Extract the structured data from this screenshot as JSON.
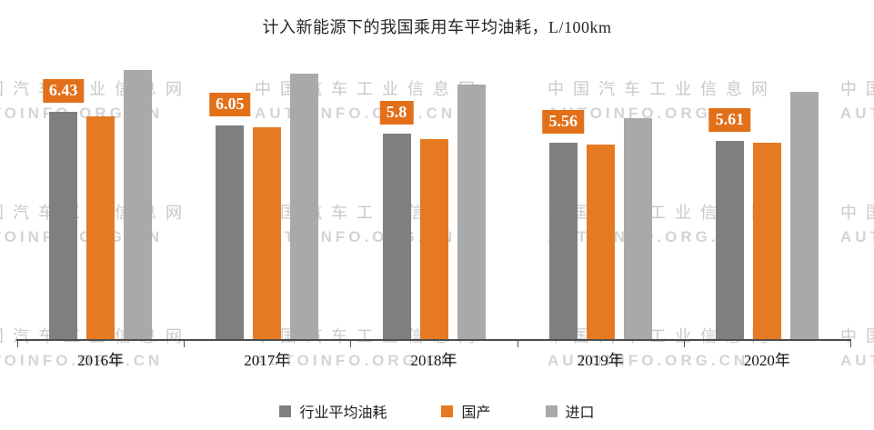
{
  "chart_data": {
    "type": "bar",
    "title": "计入新能源下的我国乘用车平均油耗，L/100km",
    "categories": [
      "2016年",
      "2017年",
      "2018年",
      "2019年",
      "2020年"
    ],
    "series": [
      {
        "name": "行业平均油耗",
        "color": "#7f7f7f",
        "values": [
          6.43,
          6.05,
          5.8,
          5.56,
          5.61
        ],
        "data_labels": [
          "6.43",
          "6.05",
          "5.8",
          "5.56",
          "5.61"
        ]
      },
      {
        "name": "国产",
        "color": "#e67a22",
        "values": [
          6.3,
          6.0,
          5.65,
          5.5,
          5.55
        ]
      },
      {
        "name": "进口",
        "color": "#a9a9a9",
        "values": [
          7.6,
          7.5,
          7.2,
          6.25,
          7.0
        ]
      }
    ],
    "ylim": [
      0,
      8.05
    ],
    "xlabel": "",
    "ylabel": "",
    "grid": false,
    "legend_position": "bottom",
    "data_label_box_color": "#e2701a",
    "data_label_text_color": "#ffffff",
    "axis_color": "#4d4d4d"
  },
  "watermark": {
    "line1": "中国汽车工业信息网",
    "line2": "AUTOINFO.ORG.CN",
    "color_line1": "#c9c9c9",
    "color_line2": "#d4d4d4"
  }
}
